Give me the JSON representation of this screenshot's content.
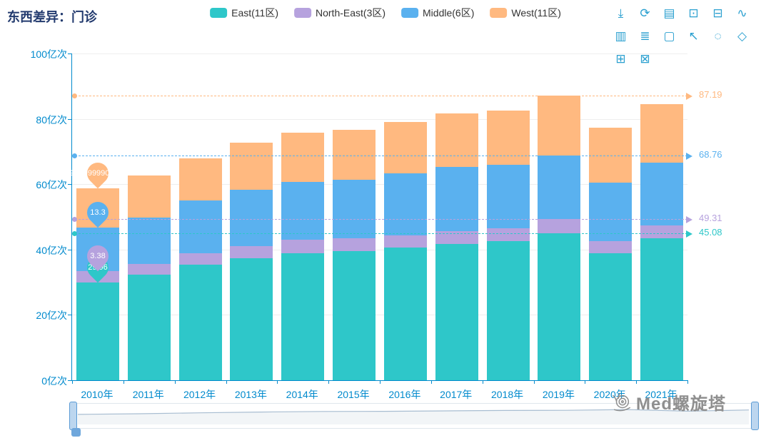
{
  "title": "东西差异：门诊",
  "colors": {
    "axis": "#008acd",
    "title": "#223a6e",
    "grid": "#eeeeee",
    "east": "#2ec7c9",
    "north_east": "#b6a2de",
    "middle": "#5ab1ef",
    "west": "#ffb980",
    "watermark": "#8f8f8f"
  },
  "legend": {
    "items": [
      {
        "label": "East(11区)",
        "color": "#2ec7c9"
      },
      {
        "label": "North-East(3区)",
        "color": "#b6a2de"
      },
      {
        "label": "Middle(6区)",
        "color": "#5ab1ef"
      },
      {
        "label": "West(11区)",
        "color": "#ffb980"
      }
    ]
  },
  "toolbox": {
    "color": "#2ba0d0",
    "icons": [
      {
        "name": "save-image-icon",
        "glyph": "⤓"
      },
      {
        "name": "restore-icon",
        "glyph": "⟳"
      },
      {
        "name": "data-view-icon",
        "glyph": "▤"
      },
      {
        "name": "zoom-window-icon",
        "glyph": "⊡"
      },
      {
        "name": "zoom-reset-icon",
        "glyph": "⊟"
      },
      {
        "name": "line-chart-icon",
        "glyph": "∿"
      },
      {
        "name": "bar-chart-icon",
        "glyph": "▥"
      },
      {
        "name": "stack-icon",
        "glyph": "≣"
      },
      {
        "name": "rect-brush-icon",
        "glyph": "▢"
      },
      {
        "name": "lasso-brush-icon",
        "glyph": "↖"
      },
      {
        "name": "circle-brush-icon",
        "glyph": "◌"
      },
      {
        "name": "polygon-brush-icon",
        "glyph": "◇"
      },
      {
        "name": "clear-brush-icon",
        "glyph": "⊞"
      },
      {
        "name": "exit-brush-icon",
        "glyph": "⊠"
      }
    ]
  },
  "watermark": {
    "text": "Med螺旋塔"
  },
  "chart_data": {
    "type": "bar",
    "stacked": true,
    "title": "东西差异：门诊",
    "unit": "亿次",
    "categories": [
      "2010年",
      "2011年",
      "2012年",
      "2013年",
      "2014年",
      "2015年",
      "2016年",
      "2017年",
      "2018年",
      "2019年",
      "2020年",
      "2021年"
    ],
    "series": [
      {
        "name": "East(11区)",
        "color": "#2ec7c9",
        "values": [
          29.96,
          32.3,
          35.4,
          37.3,
          38.9,
          39.5,
          40.6,
          41.7,
          42.6,
          45.08,
          38.9,
          43.4
        ]
      },
      {
        "name": "North-East(3区)",
        "color": "#b6a2de",
        "values": [
          3.38,
          3.3,
          3.5,
          3.7,
          4.1,
          3.9,
          3.7,
          3.9,
          3.9,
          4.23,
          3.7,
          4.0
        ]
      },
      {
        "name": "Middle(6区)",
        "color": "#5ab1ef",
        "values": [
          13.3,
          14.2,
          16.1,
          17.3,
          17.7,
          18.0,
          19.0,
          19.7,
          19.4,
          19.45,
          17.9,
          19.2
        ]
      },
      {
        "name": "West(11区)",
        "color": "#ffb980",
        "values": [
          12.0,
          12.9,
          12.9,
          14.4,
          15.1,
          15.2,
          15.7,
          16.4,
          16.6,
          18.43,
          16.8,
          17.9
        ]
      }
    ],
    "ylim": [
      0,
      100
    ],
    "yticks": [
      {
        "value": 0,
        "label": "0亿次"
      },
      {
        "value": 20,
        "label": "20亿次"
      },
      {
        "value": 40,
        "label": "40亿次"
      },
      {
        "value": 60,
        "label": "60亿次"
      },
      {
        "value": 80,
        "label": "80亿次"
      },
      {
        "value": 100,
        "label": "100亿次"
      }
    ],
    "grid": true,
    "legend_position": "top-center",
    "mark_lines": [
      {
        "label": "87.19",
        "value": 87.19,
        "color": "#ffb980"
      },
      {
        "label": "68.76",
        "value": 68.76,
        "color": "#5ab1ef"
      },
      {
        "label": "49.31",
        "value": 49.31,
        "color": "#b6a2de"
      },
      {
        "label": "45.08",
        "value": 45.08,
        "color": "#2ec7c9"
      }
    ],
    "mark_points": [
      {
        "series": "East(11区)",
        "category": "2010年",
        "label": "29.96",
        "stack_top": 29.96,
        "color": "#2ec7c9"
      },
      {
        "series": "North-East(3区)",
        "category": "2010年",
        "label": "3.38",
        "stack_top": 33.34,
        "color": "#b6a2de"
      },
      {
        "series": "Middle(6区)",
        "category": "2010年",
        "label": "13.3",
        "stack_top": 46.64,
        "color": "#5ab1ef"
      },
      {
        "series": "West(11区)",
        "category": "2010年",
        "label": "11.999999990000001",
        "stack_top": 58.64,
        "color": "#ffb980"
      }
    ]
  }
}
